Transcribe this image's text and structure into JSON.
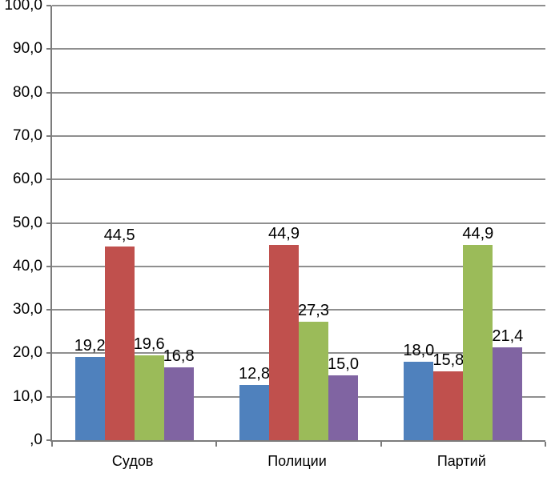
{
  "chart_data": {
    "type": "bar",
    "title": "",
    "xlabel": "",
    "ylabel": "",
    "categories": [
      "Судов",
      "Полиции",
      "Партий"
    ],
    "series": [
      {
        "color": "#4F81BD",
        "values": [
          19.2,
          12.8,
          18.0
        ],
        "labels": [
          "19,2",
          "12,8",
          "18,0"
        ]
      },
      {
        "color": "#C0504D",
        "values": [
          44.5,
          44.9,
          15.8
        ],
        "labels": [
          "44,5",
          "44,9",
          "15,8"
        ]
      },
      {
        "color": "#9BBB59",
        "values": [
          19.6,
          27.3,
          44.9
        ],
        "labels": [
          "19,6",
          "27,3",
          "44,9"
        ]
      },
      {
        "color": "#8064A2",
        "values": [
          16.8,
          15.0,
          21.4
        ],
        "labels": [
          "16,8",
          "15,0",
          "21,4"
        ]
      }
    ],
    "y_axis": {
      "min": 0,
      "max": 100,
      "step": 10,
      "tick_labels": [
        ",0",
        "10,0",
        "20,0",
        "30,0",
        "40,0",
        "50,0",
        "60,0",
        "70,0",
        "80,0",
        "90,0",
        "100,0"
      ]
    },
    "grid": true,
    "legend": "none",
    "decimal_separator": ",",
    "colors": {
      "gridline": "#8f8f8f",
      "axis": "#7c7c7c",
      "text": "#000000",
      "background": "#ffffff"
    }
  }
}
